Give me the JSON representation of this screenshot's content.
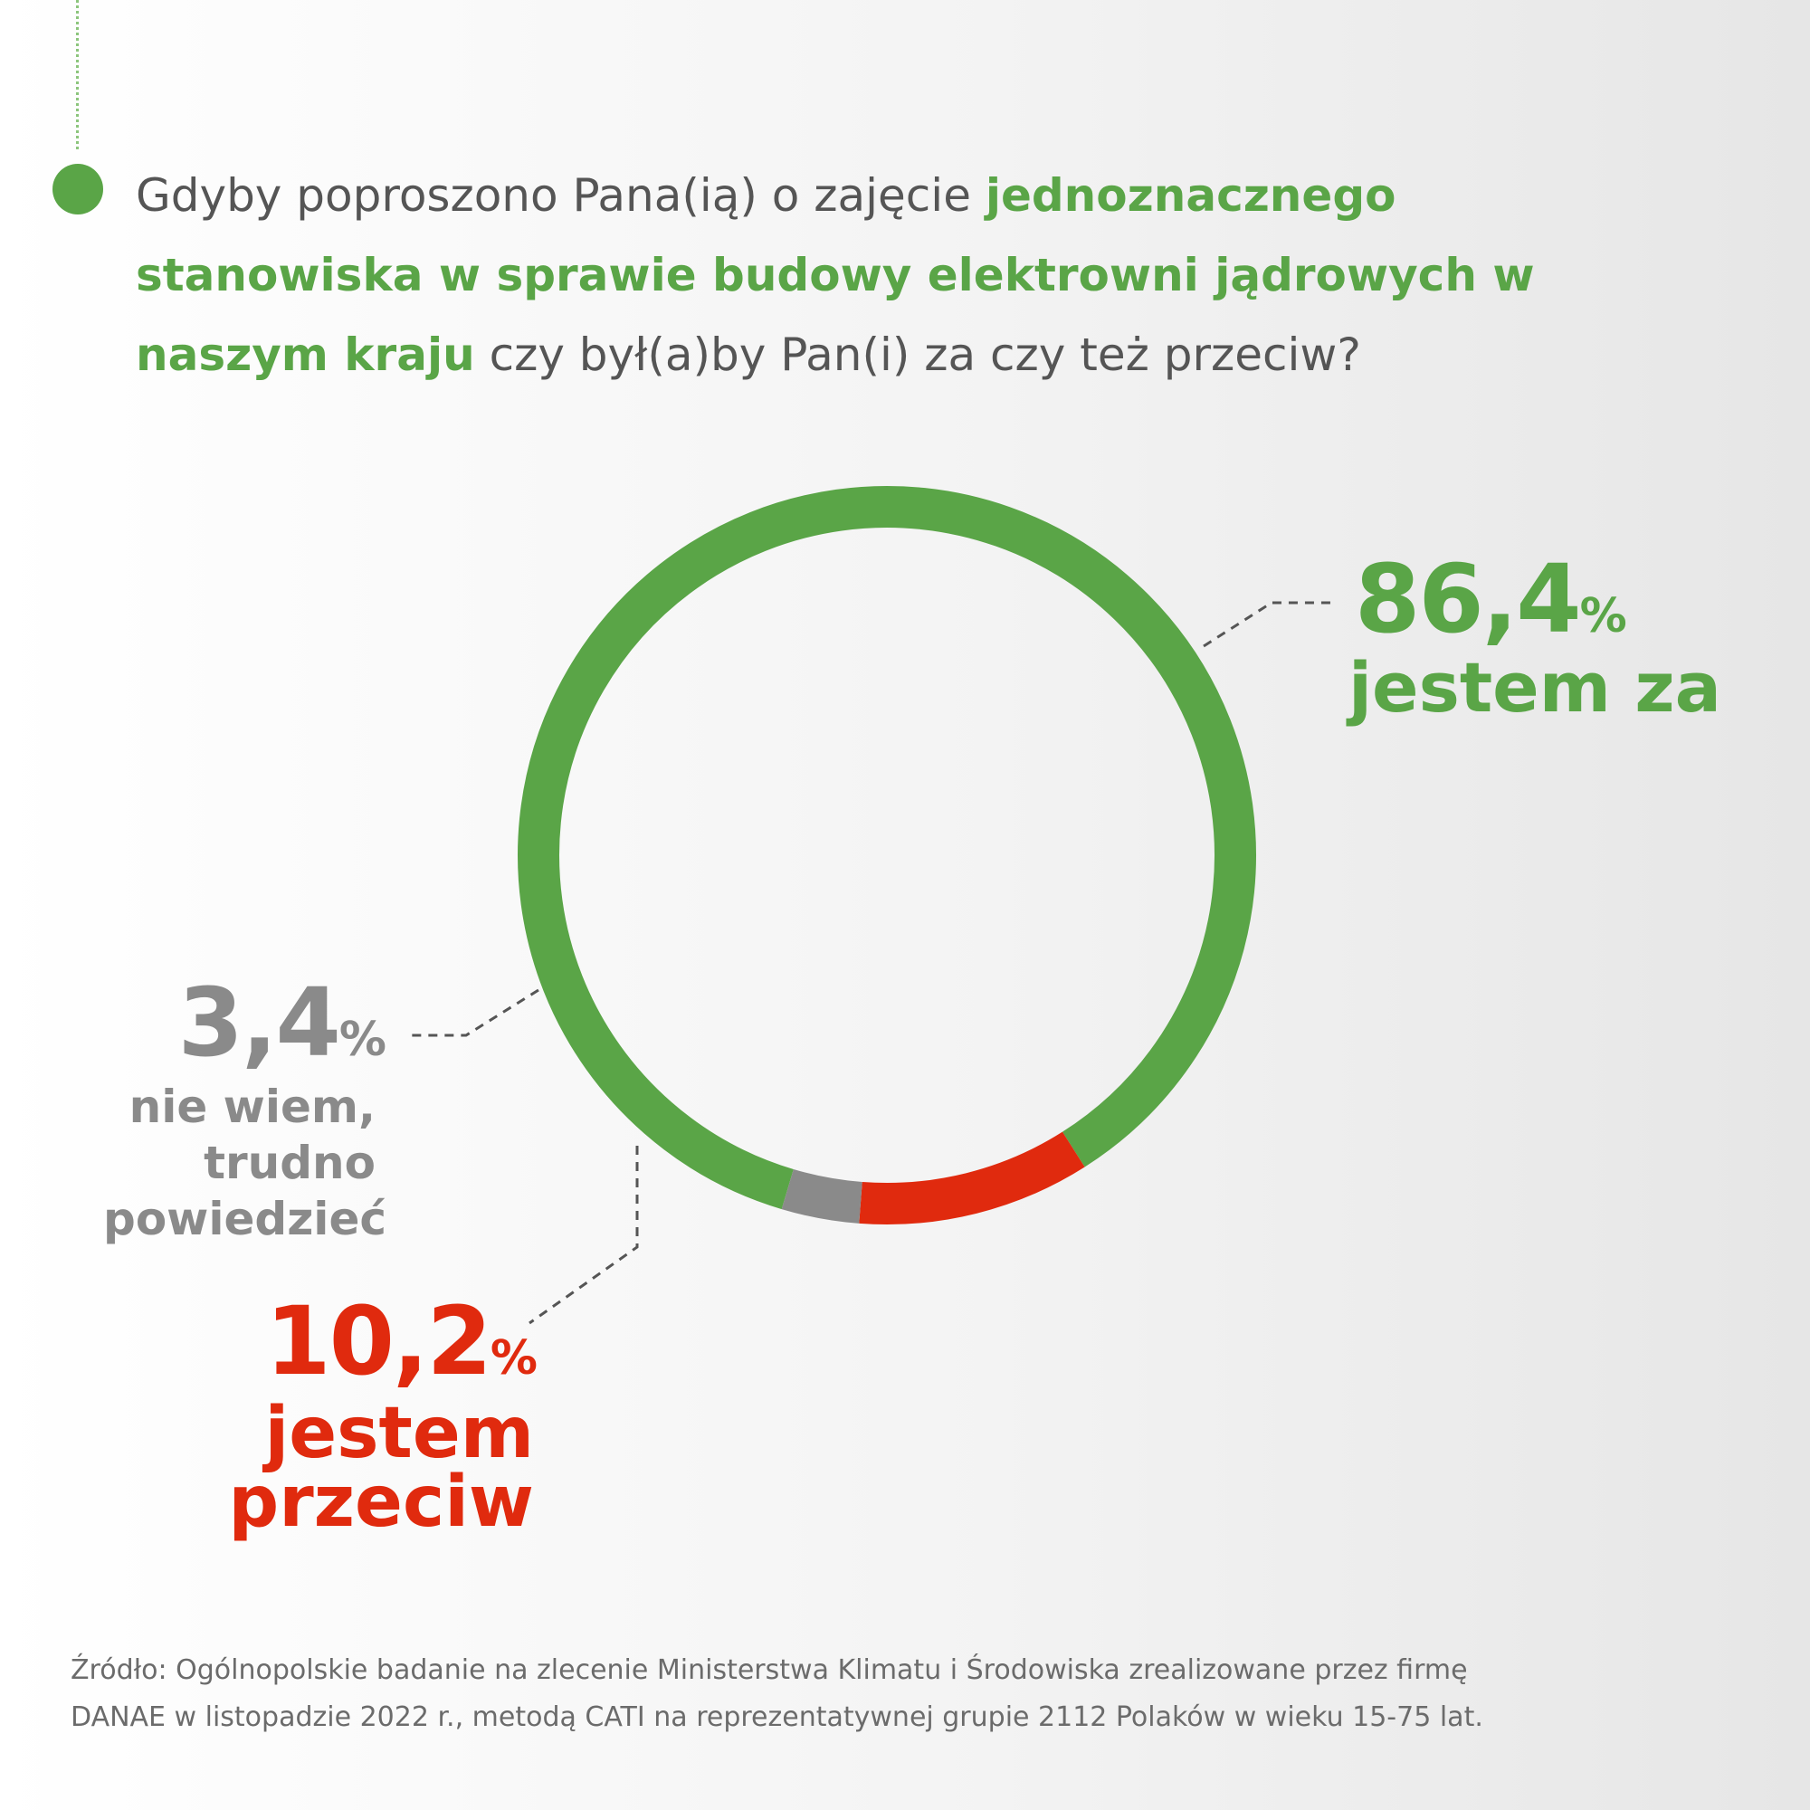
{
  "question": {
    "part1": "Gdyby poproszono Pana(ią) o zajęcie ",
    "highlight": "jednoznacznego stanowiska w sprawie budowy elektrowni jądrowych w naszym kraju",
    "part2": " czy był(a)by Pan(i) za czy też przeciw?"
  },
  "chart_data": {
    "type": "pie",
    "style": "donut",
    "slices": [
      {
        "pct_label": "86,4",
        "unit": "%",
        "label": "jestem za",
        "value": 86.4,
        "color": "#5aa547"
      },
      {
        "pct_label": "10,2",
        "unit": "%",
        "label": "jestem przeciw",
        "value": 10.2,
        "color": "#e02a0e"
      },
      {
        "pct_label": "3,4",
        "unit": "%",
        "label": "nie wiem, trudno powiedzieć",
        "value": 3.4,
        "color": "#8a8a8a"
      }
    ]
  },
  "labels": {
    "za": {
      "lines": [
        "jestem za"
      ]
    },
    "przeciw": {
      "lines": [
        "jestem",
        "przeciw"
      ]
    },
    "nie_wiem": {
      "lines": [
        "nie wiem,",
        "trudno",
        "powiedzieć"
      ]
    }
  },
  "source": {
    "line1": "Źródło: Ogólnopolskie badanie na zlecenie Ministerstwa Klimatu i Środowiska zrealizowane przez firmę",
    "line2": "DANAE w listopadzie 2022 r., metodą CATI na reprezentatywnej grupie 2112 Polaków w wieku 15-75 lat."
  },
  "colors": {
    "green": "#5aa547",
    "red": "#e02a0e",
    "gray": "#8a8a8a",
    "text": "#555555",
    "leader": "#555555"
  }
}
